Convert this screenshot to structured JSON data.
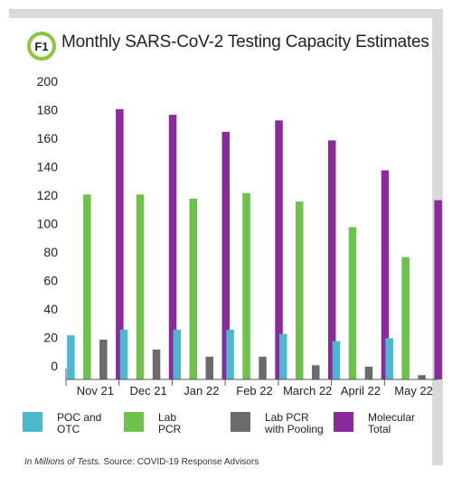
{
  "figure_tag": "F1",
  "chart_data": {
    "type": "bar",
    "title": "Monthly SARS-CoV-2 Testing Capacity Estimates",
    "categories": [
      "Nov 21",
      "Dec 21",
      "Jan 22",
      "Feb 22",
      "March 22",
      "April 22",
      "May 22"
    ],
    "series": [
      {
        "name": "POC and\nOTC",
        "color": "#4bb8d2",
        "values": [
          31,
          35,
          35,
          35,
          32,
          27,
          29
        ]
      },
      {
        "name": "Lab\nPCR",
        "color": "#6cc24a",
        "values": [
          130,
          130,
          127,
          131,
          125,
          107,
          86
        ]
      },
      {
        "name": "Lab PCR\nwith Pooling",
        "color": "#6b6b6b",
        "values": [
          28,
          21,
          16,
          16,
          10,
          9,
          3
        ]
      },
      {
        "name": "Molecular\nTotal",
        "color": "#8b2a9a",
        "values": [
          190,
          186,
          174,
          182,
          168,
          147,
          126
        ]
      }
    ],
    "yticks": [
      0,
      20,
      40,
      60,
      80,
      100,
      120,
      140,
      160,
      180,
      200
    ],
    "ylim": [
      0,
      200
    ],
    "grid": false,
    "legend_position": "bottom"
  },
  "footnote": {
    "italic": "In Millions of Tests.",
    "rest": " Source: COVID-19 Response Advisors"
  }
}
